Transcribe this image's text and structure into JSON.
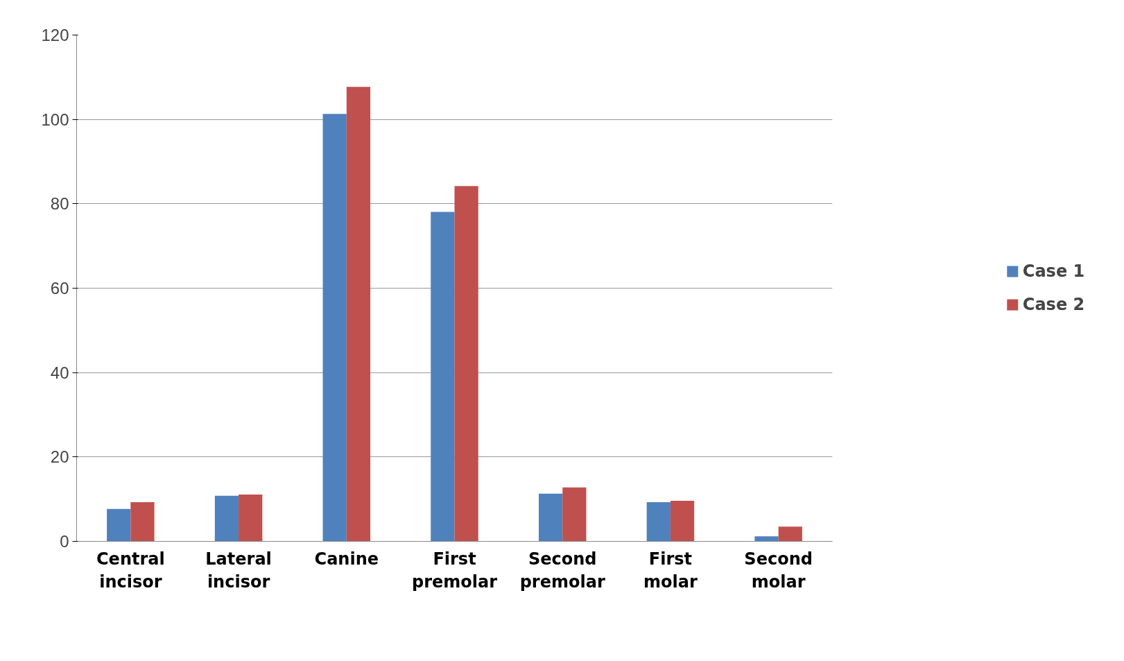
{
  "chart_data": {
    "type": "bar",
    "categories": [
      "Central incisor",
      "Lateral incisor",
      "Canine",
      "First premolar",
      "Second premolar",
      "First molar",
      "Second molar"
    ],
    "series": [
      {
        "name": "Case 1",
        "color": "#4f81bd",
        "values": [
          7.7,
          10.8,
          101.3,
          78.1,
          11.3,
          9.3,
          1.2
        ]
      },
      {
        "name": "Case 2",
        "color": "#c0504d",
        "values": [
          9.3,
          11.1,
          107.7,
          84.2,
          12.8,
          9.6,
          3.5
        ]
      }
    ],
    "ylim": [
      0,
      120
    ],
    "yticks": [
      0,
      20,
      40,
      60,
      80,
      100,
      120
    ],
    "grid": "y",
    "legend": "right"
  }
}
